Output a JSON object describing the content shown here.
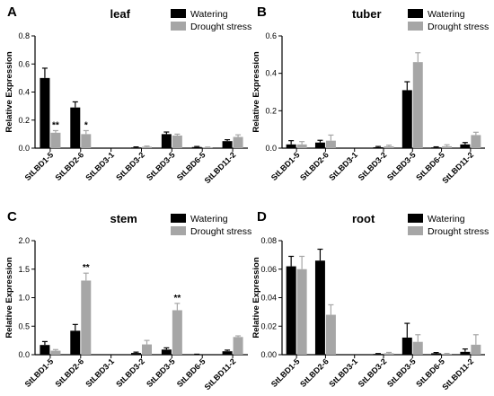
{
  "colors": {
    "watering": "#000000",
    "drought": "#a6a6a6"
  },
  "chart_data": [
    {
      "type": "bar",
      "panel": "A",
      "title": "leaf",
      "xlabel": "",
      "ylabel": "Relative Expression",
      "ylim": [
        0,
        0.8
      ],
      "yticks": [
        "0.0",
        "0.2",
        "0.4",
        "0.6",
        "0.8"
      ],
      "legend": {
        "position": "top-right",
        "entries": [
          "Watering",
          "Drought stress"
        ]
      },
      "categories": [
        "StLBD1-5",
        "StLBD2-6",
        "StLBD3-1",
        "StLBD3-2",
        "StLBD3-5",
        "StLBD6-5",
        "StLBD11-2"
      ],
      "series": [
        {
          "name": "Watering",
          "values": [
            0.5,
            0.29,
            0.0,
            0.005,
            0.1,
            0.008,
            0.05
          ],
          "errors": [
            0.07,
            0.04,
            0,
            0.004,
            0.015,
            0.004,
            0.01
          ]
        },
        {
          "name": "Drought stress",
          "values": [
            0.11,
            0.1,
            0.0,
            0.01,
            0.09,
            0.005,
            0.08
          ],
          "errors": [
            0.015,
            0.025,
            0,
            0.005,
            0.01,
            0.003,
            0.015
          ]
        }
      ],
      "annotations": [
        {
          "category": "StLBD1-5",
          "series": "Drought stress",
          "text": "**"
        },
        {
          "category": "StLBD2-6",
          "series": "Drought stress",
          "text": "*"
        }
      ]
    },
    {
      "type": "bar",
      "panel": "B",
      "title": "tuber",
      "xlabel": "",
      "ylabel": "Relative Expression",
      "ylim": [
        0,
        0.6
      ],
      "yticks": [
        "0.0",
        "0.2",
        "0.4",
        "0.6"
      ],
      "legend": {
        "position": "top-right",
        "entries": [
          "Watering",
          "Drought stress"
        ]
      },
      "categories": [
        "StLBD1-5",
        "StLBD2-6",
        "StLBD3-1",
        "StLBD3-2",
        "StLBD3-5",
        "StLBD6-5",
        "StLBD11-2"
      ],
      "series": [
        {
          "name": "Watering",
          "values": [
            0.02,
            0.03,
            0.0,
            0.005,
            0.31,
            0.004,
            0.02
          ],
          "errors": [
            0.02,
            0.012,
            0,
            0.004,
            0.045,
            0.003,
            0.01
          ]
        },
        {
          "name": "Drought stress",
          "values": [
            0.02,
            0.04,
            0.0,
            0.01,
            0.46,
            0.01,
            0.07
          ],
          "errors": [
            0.015,
            0.03,
            0,
            0.006,
            0.05,
            0.008,
            0.015
          ]
        }
      ],
      "annotations": []
    },
    {
      "type": "bar",
      "panel": "C",
      "title": "stem",
      "xlabel": "",
      "ylabel": "Relative Expression",
      "ylim": [
        0,
        2.0
      ],
      "yticks": [
        "0.0",
        "0.5",
        "1.0",
        "1.5",
        "2.0"
      ],
      "legend": {
        "position": "top-right",
        "entries": [
          "Watering",
          "Drought stress"
        ]
      },
      "categories": [
        "StLBD1-5",
        "StLBD2-6",
        "StLBD3-1",
        "StLBD3-2",
        "StLBD3-5",
        "StLBD6-5",
        "StLBD11-2"
      ],
      "series": [
        {
          "name": "Watering",
          "values": [
            0.17,
            0.42,
            0.0,
            0.03,
            0.09,
            0.005,
            0.06
          ],
          "errors": [
            0.06,
            0.11,
            0,
            0.015,
            0.03,
            0.004,
            0.02
          ]
        },
        {
          "name": "Drought stress",
          "values": [
            0.07,
            1.3,
            0.0,
            0.18,
            0.78,
            0.0,
            0.31
          ],
          "errors": [
            0.02,
            0.13,
            0,
            0.07,
            0.12,
            0,
            0.02
          ]
        }
      ],
      "annotations": [
        {
          "category": "StLBD2-6",
          "series": "Drought stress",
          "text": "**"
        },
        {
          "category": "StLBD3-5",
          "series": "Drought stress",
          "text": "**"
        }
      ]
    },
    {
      "type": "bar",
      "panel": "D",
      "title": "root",
      "xlabel": "",
      "ylabel": "Relative Expression",
      "ylim": [
        0,
        0.08
      ],
      "yticks": [
        "0.00",
        "0.02",
        "0.04",
        "0.06",
        "0.08"
      ],
      "legend": {
        "position": "top-right",
        "entries": [
          "Watering",
          "Drought stress"
        ]
      },
      "categories": [
        "StLBD1-5",
        "StLBD2-6",
        "StLBD3-1",
        "StLBD3-2",
        "StLBD3-5",
        "StLBD6-5",
        "StLBD11-2"
      ],
      "series": [
        {
          "name": "Watering",
          "values": [
            0.062,
            0.066,
            0.0,
            0.0005,
            0.012,
            0.001,
            0.002
          ],
          "errors": [
            0.007,
            0.008,
            0,
            0.0003,
            0.01,
            0.0005,
            0.002
          ]
        },
        {
          "name": "Drought stress",
          "values": [
            0.06,
            0.028,
            0.0,
            0.001,
            0.009,
            0.0005,
            0.007
          ],
          "errors": [
            0.009,
            0.007,
            0,
            0.0006,
            0.005,
            0.0004,
            0.007
          ]
        }
      ],
      "annotations": []
    }
  ]
}
